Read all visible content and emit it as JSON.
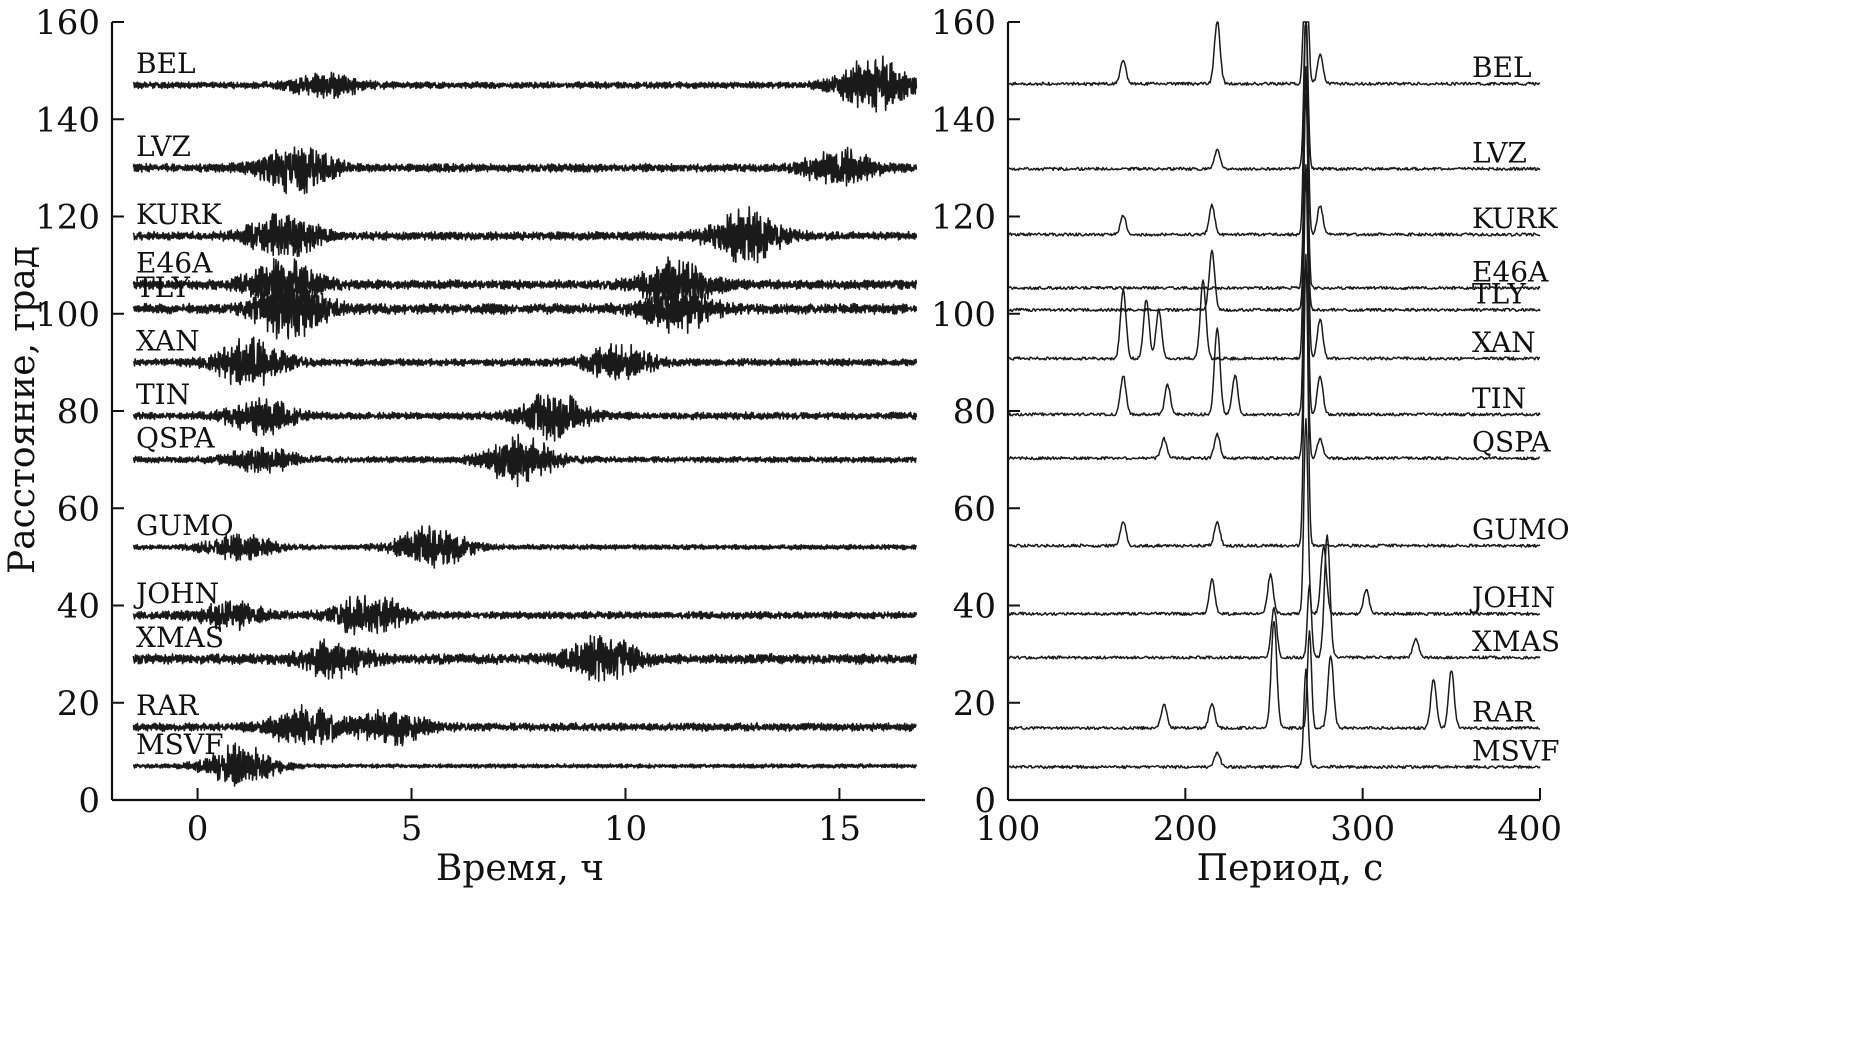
{
  "chart_data": [
    {
      "type": "line",
      "xlabel": "Время, ч",
      "ylabel": "Расстояние, град",
      "xlim": [
        -2,
        17
      ],
      "ylim": [
        0,
        160
      ],
      "xticks": [
        "0",
        "5",
        "10",
        "15"
      ],
      "xtick_values": [
        0,
        5,
        10,
        15
      ],
      "yticks": [
        "0",
        "20",
        "40",
        "60",
        "80",
        "100",
        "120",
        "140",
        "160"
      ],
      "ytick_values": [
        0,
        20,
        40,
        60,
        80,
        100,
        120,
        140,
        160
      ],
      "series": [
        {
          "name": "BEL",
          "distance": 147,
          "t_start": -1.5,
          "amplitude": 3.2,
          "bursts": [
            {
              "t": 3.0,
              "amp": 5
            },
            {
              "t": 15.8,
              "amp": 12
            }
          ]
        },
        {
          "name": "LVZ",
          "distance": 130,
          "t_start": -1.5,
          "amplitude": 4.0,
          "bursts": [
            {
              "t": 2.3,
              "amp": 10
            },
            {
              "t": 15.0,
              "amp": 8
            }
          ]
        },
        {
          "name": "KURK",
          "distance": 116,
          "t_start": -1.5,
          "amplitude": 4.0,
          "bursts": [
            {
              "t": 2.0,
              "amp": 9
            },
            {
              "t": 12.8,
              "amp": 11
            }
          ]
        },
        {
          "name": "E46A",
          "distance": 106,
          "t_start": -1.5,
          "amplitude": 4.5,
          "bursts": [
            {
              "t": 2.0,
              "amp": 11
            },
            {
              "t": 11.2,
              "amp": 10
            }
          ]
        },
        {
          "name": "TLY",
          "distance": 101,
          "t_start": -1.5,
          "amplitude": 5.0,
          "bursts": [
            {
              "t": 2.2,
              "amp": 13
            },
            {
              "t": 11.2,
              "amp": 9
            }
          ]
        },
        {
          "name": "XAN",
          "distance": 90,
          "t_start": -1.5,
          "amplitude": 3.5,
          "bursts": [
            {
              "t": 1.2,
              "amp": 10
            },
            {
              "t": 9.8,
              "amp": 7
            }
          ]
        },
        {
          "name": "TIN",
          "distance": 79,
          "t_start": -1.5,
          "amplitude": 3.5,
          "bursts": [
            {
              "t": 1.5,
              "amp": 7
            },
            {
              "t": 8.3,
              "amp": 9
            }
          ]
        },
        {
          "name": "QSPA",
          "distance": 70,
          "t_start": -1.5,
          "amplitude": 3.0,
          "bursts": [
            {
              "t": 1.5,
              "amp": 5
            },
            {
              "t": 7.5,
              "amp": 10
            }
          ]
        },
        {
          "name": "GUMO",
          "distance": 52,
          "t_start": -1.5,
          "amplitude": 2.5,
          "bursts": [
            {
              "t": 1.0,
              "amp": 5
            },
            {
              "t": 5.5,
              "amp": 9
            }
          ]
        },
        {
          "name": "JOHN",
          "distance": 38,
          "t_start": -1.5,
          "amplitude": 3.5,
          "bursts": [
            {
              "t": 0.8,
              "amp": 5
            },
            {
              "t": 4.0,
              "amp": 9
            }
          ]
        },
        {
          "name": "XMAS",
          "distance": 29,
          "t_start": -1.5,
          "amplitude": 5.0,
          "bursts": [
            {
              "t": 3.2,
              "amp": 7
            },
            {
              "t": 9.5,
              "amp": 9
            }
          ]
        },
        {
          "name": "RAR",
          "distance": 15,
          "t_start": -1.5,
          "amplitude": 4.0,
          "bursts": [
            {
              "t": 2.5,
              "amp": 8
            },
            {
              "t": 4.5,
              "amp": 7
            }
          ]
        },
        {
          "name": "MSVF",
          "distance": 7,
          "t_start": -1.5,
          "amplitude": 2.0,
          "bursts": [
            {
              "t": 1.0,
              "amp": 9
            }
          ]
        }
      ]
    },
    {
      "type": "line",
      "xlabel": "Период, с",
      "ylabel": "",
      "xlim": [
        100,
        400
      ],
      "ylim": [
        0,
        160
      ],
      "xticks": [
        "100",
        "200",
        "300",
        "400"
      ],
      "xtick_values": [
        100,
        200,
        300,
        400
      ],
      "yticks": [
        "0",
        "20",
        "40",
        "60",
        "80",
        "100",
        "120",
        "140",
        "160"
      ],
      "ytick_values": [
        0,
        20,
        40,
        60,
        80,
        100,
        120,
        140,
        160
      ],
      "series": [
        {
          "name": "BEL",
          "baseline": 147,
          "peaks": [
            [
              165,
              5
            ],
            [
              218,
              13
            ],
            [
              268,
              40
            ],
            [
              276,
              6
            ]
          ]
        },
        {
          "name": "LVZ",
          "baseline": 129.5,
          "peaks": [
            [
              218,
              4
            ],
            [
              268,
              32
            ]
          ]
        },
        {
          "name": "KURK",
          "baseline": 116,
          "peaks": [
            [
              165,
              4
            ],
            [
              215,
              6
            ],
            [
              268,
              45
            ],
            [
              276,
              6
            ]
          ]
        },
        {
          "name": "E46A",
          "baseline": 105,
          "peaks": [
            [
              268,
              40
            ]
          ]
        },
        {
          "name": "TLY",
          "baseline": 100.5,
          "peaks": [
            [
              215,
              12
            ],
            [
              268,
              30
            ]
          ]
        },
        {
          "name": "XAN",
          "baseline": 90.5,
          "peaks": [
            [
              165,
              14
            ],
            [
              178,
              12
            ],
            [
              185,
              10
            ],
            [
              210,
              16
            ],
            [
              268,
              60
            ],
            [
              276,
              8
            ]
          ]
        },
        {
          "name": "TIN",
          "baseline": 79,
          "peaks": [
            [
              165,
              8
            ],
            [
              190,
              6
            ],
            [
              218,
              18
            ],
            [
              228,
              8
            ],
            [
              268,
              50
            ],
            [
              276,
              8
            ]
          ]
        },
        {
          "name": "QSPA",
          "baseline": 70,
          "peaks": [
            [
              188,
              4
            ],
            [
              218,
              5
            ],
            [
              268,
              40
            ],
            [
              276,
              4
            ]
          ]
        },
        {
          "name": "GUMO",
          "baseline": 52,
          "peaks": [
            [
              165,
              5
            ],
            [
              218,
              5
            ],
            [
              268,
              60
            ]
          ]
        },
        {
          "name": "JOHN",
          "baseline": 38,
          "peaks": [
            [
              215,
              7
            ],
            [
              248,
              8
            ],
            [
              268,
              40
            ],
            [
              278,
              14
            ],
            [
              302,
              5
            ]
          ]
        },
        {
          "name": "XMAS",
          "baseline": 29,
          "peaks": [
            [
              250,
              10
            ],
            [
              270,
              15
            ],
            [
              280,
              25
            ],
            [
              330,
              4
            ]
          ]
        },
        {
          "name": "RAR",
          "baseline": 14.5,
          "peaks": [
            [
              188,
              5
            ],
            [
              215,
              5
            ],
            [
              250,
              22
            ],
            [
              270,
              20
            ],
            [
              282,
              15
            ],
            [
              340,
              10
            ],
            [
              350,
              12
            ]
          ]
        },
        {
          "name": "MSVF",
          "baseline": 6.5,
          "peaks": [
            [
              218,
              3
            ],
            [
              268,
              20
            ]
          ]
        }
      ]
    }
  ]
}
